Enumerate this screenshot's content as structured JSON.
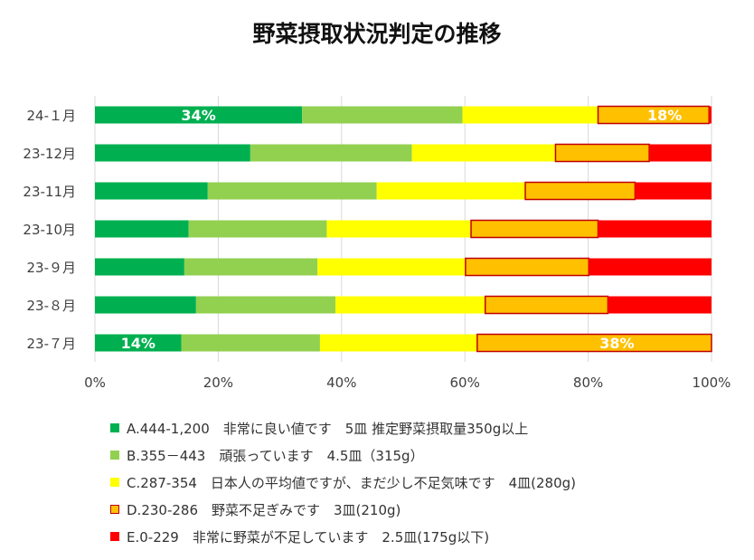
{
  "chart_data": {
    "type": "bar",
    "orientation": "horizontal",
    "stacked": "percent",
    "title": "野菜摂取状況判定の推移",
    "categories": [
      "24-１月",
      "23-12月",
      "23-11月",
      "23-10月",
      "23-９月",
      "23-８月",
      "23-７月"
    ],
    "series": [
      {
        "name": "A.444-1,200　非常に良い値です　5皿 推定野菜摂取量350g以上",
        "color": "#00b050",
        "outline": false,
        "values": [
          33.6,
          25.2,
          18.3,
          15.2,
          14.5,
          16.4,
          14.0
        ]
      },
      {
        "name": "B.355－443　頑張っています　4.5皿（315g）",
        "color": "#92d050",
        "outline": false,
        "values": [
          26.0,
          26.2,
          27.4,
          22.4,
          21.6,
          22.6,
          22.5
        ]
      },
      {
        "name": "C.287-354　日本人の平均値ですが、まだ少し不足気味です　4皿(280g)",
        "color": "#ffff00",
        "outline": false,
        "values": [
          22.0,
          23.3,
          24.1,
          23.4,
          24.0,
          24.3,
          25.5
        ]
      },
      {
        "name": "D.230-286　野菜不足ぎみです　3皿(210g)",
        "color": "#ffc000",
        "outline": true,
        "values": [
          0,
          15.2,
          17.8,
          20.6,
          20.0,
          19.9,
          0
        ]
      },
      {
        "name": "E.0-229　非常に野菜が不足しています　2.5皿(175g以下)",
        "color": "#ff0000",
        "outline": false,
        "values": [
          0,
          10.1,
          12.4,
          18.4,
          19.9,
          16.8,
          0
        ]
      }
    ],
    "segments": {
      "24-１月": {
        "D": 18.0,
        "E": 0.4
      },
      "23-７月": {
        "D": 38.0,
        "E": 0.0
      }
    },
    "data_labels": [
      {
        "category": "24-１月",
        "series": 0,
        "text": "34%"
      },
      {
        "category": "24-１月",
        "series": 3,
        "text": "18%"
      },
      {
        "category": "23-７月",
        "series": 0,
        "text": "14%"
      },
      {
        "category": "23-７月",
        "series": 3,
        "text": "38%"
      }
    ],
    "xlim": [
      0,
      100
    ],
    "x_ticks": [
      "0%",
      "20%",
      "40%",
      "60%",
      "80%",
      "100%"
    ],
    "grid": "vertical",
    "legend_position": "bottom"
  }
}
